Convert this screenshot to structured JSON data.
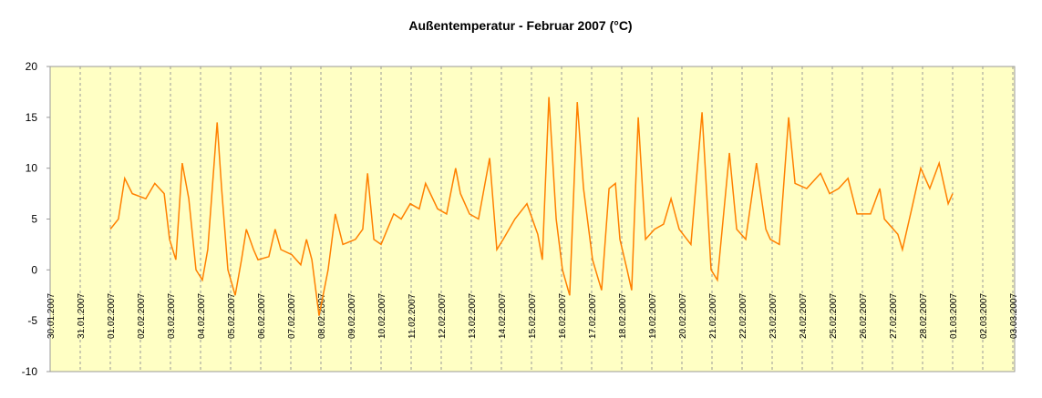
{
  "chart_data": {
    "type": "line",
    "title": "Außentemperatur - Februar 2007 (°C)",
    "x": [
      2.0,
      2.27,
      2.48,
      2.73,
      3.18,
      3.48,
      3.79,
      3.97,
      4.18,
      4.39,
      4.61,
      4.85,
      5.06,
      5.24,
      5.55,
      5.7,
      5.91,
      6.15,
      6.36,
      6.52,
      6.76,
      6.91,
      7.27,
      7.48,
      7.67,
      8.03,
      8.33,
      8.52,
      8.7,
      8.94,
      9.24,
      9.48,
      9.73,
      10.15,
      10.39,
      10.55,
      10.76,
      11.0,
      11.42,
      11.67,
      11.97,
      12.27,
      12.48,
      12.88,
      13.18,
      13.48,
      13.64,
      13.94,
      14.24,
      14.61,
      14.85,
      15.06,
      15.45,
      15.85,
      16.21,
      16.36,
      16.58,
      16.82,
      17.03,
      17.27,
      17.52,
      17.73,
      18.03,
      18.33,
      18.58,
      18.79,
      18.94,
      19.18,
      19.33,
      19.55,
      19.79,
      20.09,
      20.39,
      20.64,
      20.91,
      21.3,
      21.67,
      21.97,
      22.18,
      22.58,
      22.82,
      23.12,
      23.48,
      23.79,
      23.94,
      24.24,
      24.55,
      24.76,
      25.15,
      25.61,
      25.91,
      26.21,
      26.52,
      26.82,
      27.27,
      27.58,
      27.73,
      28.18,
      28.33,
      28.64,
      28.94,
      29.24,
      29.55,
      29.85,
      30.0
    ],
    "values": [
      4,
      5,
      9,
      7.5,
      7,
      8.5,
      7.5,
      3,
      1,
      10.5,
      7,
      0,
      -1,
      2,
      14.5,
      8,
      0,
      -2.5,
      1,
      4,
      2,
      1,
      1.3,
      4,
      2,
      1.5,
      0.5,
      3,
      1,
      -4.5,
      0,
      5.5,
      2.5,
      3,
      4,
      9.5,
      3,
      2.5,
      5.5,
      5,
      6.5,
      6,
      8.5,
      6,
      5.5,
      10,
      7.5,
      5.5,
      5,
      11,
      2,
      3,
      5,
      6.5,
      3.5,
      1,
      17,
      5,
      0,
      -2.5,
      16.5,
      8,
      1,
      -2,
      8,
      8.5,
      3,
      0,
      -2,
      15,
      3,
      4,
      4.5,
      7,
      4,
      2.5,
      15.5,
      0,
      -1,
      11.5,
      4,
      3,
      10.5,
      4,
      3,
      2.5,
      15,
      8.5,
      8,
      9.5,
      7.5,
      8,
      9,
      5.5,
      5.5,
      8,
      5,
      3.5,
      2,
      6,
      10,
      8,
      10.5,
      6.5,
      7.5
    ],
    "color": "#ff8000",
    "xlim": [
      0,
      32
    ],
    "xticks": [
      {
        "value": 0,
        "label": "30.01.2007"
      },
      {
        "value": 1,
        "label": "31.01.2007"
      },
      {
        "value": 2,
        "label": "01.02.2007"
      },
      {
        "value": 3,
        "label": "02.02.2007"
      },
      {
        "value": 4,
        "label": "03.02.2007"
      },
      {
        "value": 5,
        "label": "04.02.2007"
      },
      {
        "value": 6,
        "label": "05.02.2007"
      },
      {
        "value": 7,
        "label": "06.02.2007"
      },
      {
        "value": 8,
        "label": "07.02.2007"
      },
      {
        "value": 9,
        "label": "08.02.2007"
      },
      {
        "value": 10,
        "label": "09.02.2007"
      },
      {
        "value": 11,
        "label": "10.02.2007"
      },
      {
        "value": 12,
        "label": "11.02.2007"
      },
      {
        "value": 13,
        "label": "12.02.2007"
      },
      {
        "value": 14,
        "label": "13.02.2007"
      },
      {
        "value": 15,
        "label": "14.02.2007"
      },
      {
        "value": 16,
        "label": "15.02.2007"
      },
      {
        "value": 17,
        "label": "16.02.2007"
      },
      {
        "value": 18,
        "label": "17.02.2007"
      },
      {
        "value": 19,
        "label": "18.02.2007"
      },
      {
        "value": 20,
        "label": "19.02.2007"
      },
      {
        "value": 21,
        "label": "20.02.2007"
      },
      {
        "value": 22,
        "label": "21.02.2007"
      },
      {
        "value": 23,
        "label": "22.02.2007"
      },
      {
        "value": 24,
        "label": "23.02.2007"
      },
      {
        "value": 25,
        "label": "24.02.2007"
      },
      {
        "value": 26,
        "label": "25.02.2007"
      },
      {
        "value": 27,
        "label": "26.02.2007"
      },
      {
        "value": 28,
        "label": "27.02.2007"
      },
      {
        "value": 29,
        "label": "28.02.2007"
      },
      {
        "value": 30,
        "label": "01.03.2007"
      },
      {
        "value": 31,
        "label": "02.03.2007"
      },
      {
        "value": 32,
        "label": "03.03.2007"
      }
    ],
    "ylim": [
      -10,
      20
    ],
    "yticks": [
      -10,
      -5,
      0,
      5,
      10,
      15,
      20
    ],
    "grid": true
  }
}
